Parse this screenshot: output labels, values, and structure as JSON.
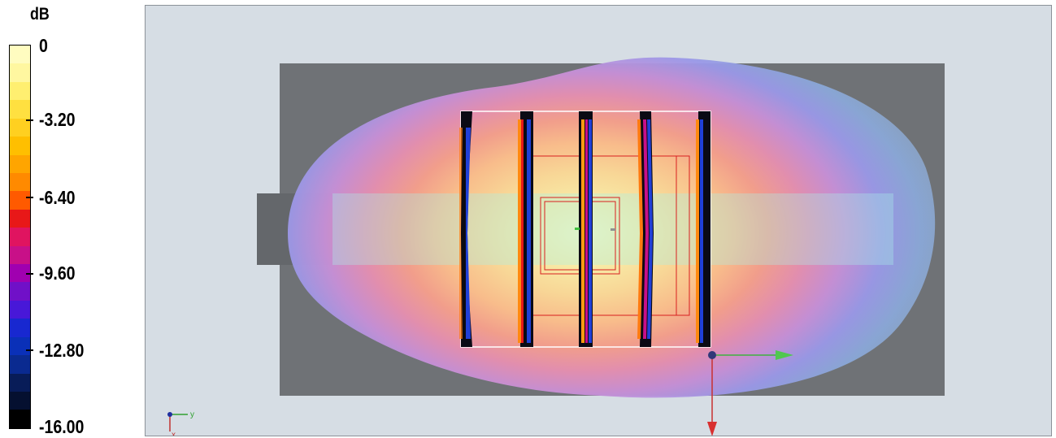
{
  "legend": {
    "unit": "dB",
    "ticks": [
      "0",
      "-3.20",
      "-6.40",
      "-9.60",
      "-12.80",
      "-16.00"
    ],
    "colors": [
      "#fffcc0",
      "#fff7a0",
      "#ffef70",
      "#ffe040",
      "#ffd020",
      "#ffbf00",
      "#ffa500",
      "#ff8a00",
      "#ff5a00",
      "#e81818",
      "#e01460",
      "#c81088",
      "#a000b0",
      "#7010c8",
      "#4818d8",
      "#1828d0",
      "#0a30b8",
      "#0a2a90",
      "#081c58",
      "#051030",
      "#000000"
    ]
  },
  "viewport": {
    "background": "#d6dde4",
    "axis_triad_labels": [
      "y",
      "x"
    ]
  }
}
